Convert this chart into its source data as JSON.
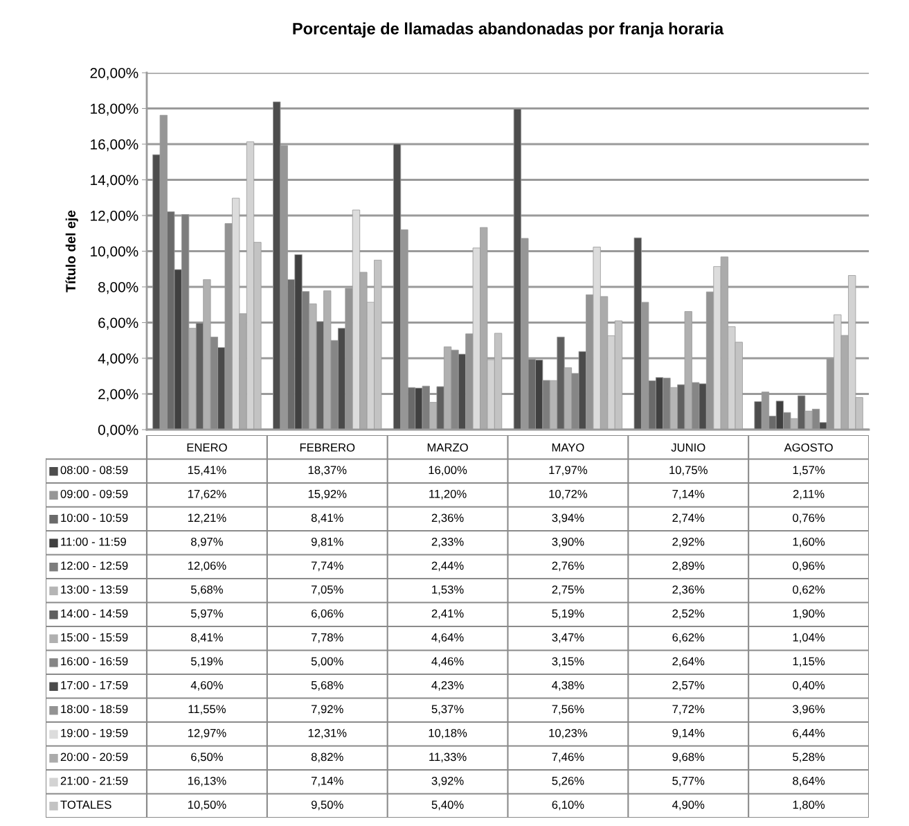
{
  "chart_data": {
    "type": "bar",
    "title": "Porcentaje de llamadas abandonadas por franja horaria",
    "ylabel": "Título del eje",
    "categories": [
      "ENERO",
      "FEBRERO",
      "MARZO",
      "MAYO",
      "JUNIO",
      "AGOSTO"
    ],
    "ylim": [
      0,
      20
    ],
    "yticks": [
      {
        "value": 0,
        "label": "0,00%"
      },
      {
        "value": 2,
        "label": "2,00%"
      },
      {
        "value": 4,
        "label": "4,00%"
      },
      {
        "value": 6,
        "label": "6,00%"
      },
      {
        "value": 8,
        "label": "8,00%"
      },
      {
        "value": 10,
        "label": "10,00%"
      },
      {
        "value": 12,
        "label": "12,00%"
      },
      {
        "value": 14,
        "label": "14,00%"
      },
      {
        "value": 16,
        "label": "16,00%"
      },
      {
        "value": 18,
        "label": "18,00%"
      },
      {
        "value": 20,
        "label": "20,00%"
      }
    ],
    "grid": "y",
    "legend": "bottom",
    "series": [
      {
        "name": "08:00 - 08:59",
        "color": "#4d4d4d",
        "values": [
          15.41,
          18.37,
          16.0,
          17.97,
          10.75,
          1.57
        ],
        "value_labels": [
          "15,41%",
          "18,37%",
          "16,00%",
          "17,97%",
          "10,75%",
          "1,57%"
        ]
      },
      {
        "name": "09:00 - 09:59",
        "color": "#969696",
        "values": [
          17.62,
          15.92,
          11.2,
          10.72,
          7.14,
          2.11
        ],
        "value_labels": [
          "17,62%",
          "15,92%",
          "11,20%",
          "10,72%",
          "7,14%",
          "2,11%"
        ]
      },
      {
        "name": "10:00 - 10:59",
        "color": "#6a6a6a",
        "values": [
          12.21,
          8.41,
          2.36,
          3.94,
          2.74,
          0.76
        ],
        "value_labels": [
          "12,21%",
          "8,41%",
          "2,36%",
          "3,94%",
          "2,74%",
          "0,76%"
        ]
      },
      {
        "name": "11:00 - 11:59",
        "color": "#404040",
        "values": [
          8.97,
          9.81,
          2.33,
          3.9,
          2.92,
          1.6
        ],
        "value_labels": [
          "8,97%",
          "9,81%",
          "2,33%",
          "3,90%",
          "2,92%",
          "1,60%"
        ]
      },
      {
        "name": "12:00 - 12:59",
        "color": "#7d7d7d",
        "values": [
          12.06,
          7.74,
          2.44,
          2.76,
          2.89,
          0.96
        ],
        "value_labels": [
          "12,06%",
          "7,74%",
          "2,44%",
          "2,76%",
          "2,89%",
          "0,96%"
        ]
      },
      {
        "name": "13:00 - 13:59",
        "color": "#b5b5b5",
        "values": [
          5.68,
          7.05,
          1.53,
          2.75,
          2.36,
          0.62
        ],
        "value_labels": [
          "5,68%",
          "7,05%",
          "1,53%",
          "2,75%",
          "2,36%",
          "0,62%"
        ]
      },
      {
        "name": "14:00 - 14:59",
        "color": "#5f5f5f",
        "values": [
          5.97,
          6.06,
          2.41,
          5.19,
          2.52,
          1.9
        ],
        "value_labels": [
          "5,97%",
          "6,06%",
          "2,41%",
          "5,19%",
          "2,52%",
          "1,90%"
        ]
      },
      {
        "name": "15:00 - 15:59",
        "color": "#b0b0b0",
        "values": [
          8.41,
          7.78,
          4.64,
          3.47,
          6.62,
          1.04
        ],
        "value_labels": [
          "8,41%",
          "7,78%",
          "4,64%",
          "3,47%",
          "6,62%",
          "1,04%"
        ]
      },
      {
        "name": "16:00 - 16:59",
        "color": "#868686",
        "values": [
          5.19,
          5.0,
          4.46,
          3.15,
          2.64,
          1.15
        ],
        "value_labels": [
          "5,19%",
          "5,00%",
          "4,46%",
          "3,15%",
          "2,64%",
          "1,15%"
        ]
      },
      {
        "name": "17:00 - 17:59",
        "color": "#4a4a4a",
        "values": [
          4.6,
          5.68,
          4.23,
          4.38,
          2.57,
          0.4
        ],
        "value_labels": [
          "4,60%",
          "5,68%",
          "4,23%",
          "4,38%",
          "2,57%",
          "0,40%"
        ]
      },
      {
        "name": "18:00 - 18:59",
        "color": "#939393",
        "values": [
          11.55,
          7.92,
          5.37,
          7.56,
          7.72,
          3.96
        ],
        "value_labels": [
          "11,55%",
          "7,92%",
          "5,37%",
          "7,56%",
          "7,72%",
          "3,96%"
        ]
      },
      {
        "name": "19:00 - 19:59",
        "color": "#dcdcdc",
        "values": [
          12.97,
          12.31,
          10.18,
          10.23,
          9.14,
          6.44
        ],
        "value_labels": [
          "12,97%",
          "12,31%",
          "10,18%",
          "10,23%",
          "9,14%",
          "6,44%"
        ]
      },
      {
        "name": "20:00 - 20:59",
        "color": "#ababab",
        "values": [
          6.5,
          8.82,
          11.33,
          7.46,
          9.68,
          5.28
        ],
        "value_labels": [
          "6,50%",
          "8,82%",
          "11,33%",
          "7,46%",
          "9,68%",
          "5,28%"
        ]
      },
      {
        "name": "21:00 - 21:59",
        "color": "#d3d3d3",
        "values": [
          16.13,
          7.14,
          3.92,
          5.26,
          5.77,
          8.64
        ],
        "value_labels": [
          "16,13%",
          "7,14%",
          "3,92%",
          "5,26%",
          "5,77%",
          "8,64%"
        ]
      },
      {
        "name": "TOTALES",
        "color": "#c3c3c3",
        "values": [
          10.5,
          9.5,
          5.4,
          6.1,
          4.9,
          1.8
        ],
        "value_labels": [
          "10,50%",
          "9,50%",
          "5,40%",
          "6,10%",
          "4,90%",
          "1,80%"
        ]
      }
    ]
  }
}
